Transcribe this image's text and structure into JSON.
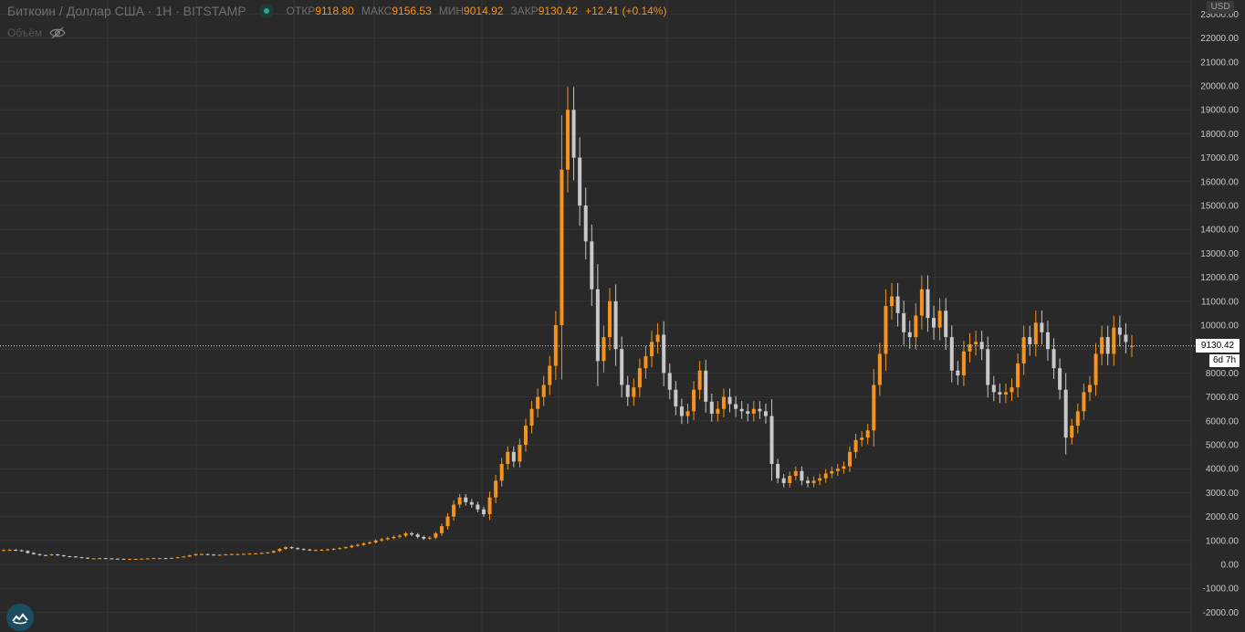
{
  "legend": {
    "title": "Биткоин / Доллар США · 1Н · BITSTAMP",
    "open_label": "ОТКР",
    "open_value": "9118.80",
    "high_label": "МАКС",
    "high_value": "9156.53",
    "low_label": "МИН",
    "low_value": "9014.92",
    "close_label": "ЗАКР",
    "close_value": "9130.42",
    "change": "+12.41 (+0.14%)",
    "volume_label": "Объём"
  },
  "currency_tag": "USD",
  "last_price_label": "9130.42",
  "countdown_label": "6d 7h",
  "colors": {
    "background": "#2a2929",
    "grid": "#353535",
    "up_candle": "#f7931a",
    "down_candle": "#c8c8c8",
    "axis_text": "#c8c8c8",
    "logo": "#1b4d63"
  },
  "icons": {
    "volume_toggle": "eye-crossed-icon",
    "logo": "cloud-logo-icon",
    "status": "status-dot-icon"
  },
  "chart_data": {
    "type": "candlestick",
    "title": "Биткоин / Доллар США · 1Н · BITSTAMP",
    "y_axis_ticks": [
      "-2000.00",
      "-1000.00",
      "0.00",
      "1000.00",
      "2000.00",
      "3000.00",
      "4000.00",
      "5000.00",
      "6000.00",
      "7000.00",
      "8000.00",
      "9000.00",
      "10000.00",
      "11000.00",
      "12000.00",
      "13000.00",
      "14000.00",
      "15000.00",
      "16000.00",
      "17000.00",
      "18000.00",
      "19000.00",
      "20000.00",
      "21000.00",
      "22000.00",
      "23000.00"
    ],
    "ylim": [
      -2700,
      24000
    ],
    "currency": "USD",
    "last_price": 9130.42,
    "series_close": [
      600,
      610,
      590,
      560,
      480,
      430,
      390,
      380,
      420,
      380,
      340,
      330,
      300,
      280,
      240,
      250,
      260,
      250,
      240,
      235,
      230,
      230,
      230,
      240,
      250,
      260,
      260,
      250,
      270,
      300,
      330,
      380,
      430,
      430,
      410,
      400,
      400,
      420,
      430,
      430,
      440,
      450,
      460,
      480,
      500,
      560,
      650,
      720,
      680,
      640,
      620,
      600,
      600,
      610,
      630,
      650,
      680,
      720,
      780,
      820,
      880,
      920,
      1000,
      1050,
      1100,
      1150,
      1200,
      1300,
      1250,
      1150,
      1080,
      1120,
      1300,
      1600,
      2000,
      2500,
      2800,
      2600,
      2500,
      2300,
      2100,
      2800,
      3500,
      4200,
      4700,
      4300,
      5000,
      5800,
      6500,
      7000,
      7500,
      8300,
      10000,
      16500,
      19000,
      17000,
      15000,
      13500,
      11500,
      8500,
      9500,
      11000,
      9000,
      7500,
      7000,
      7400,
      8200,
      8700,
      9300,
      9600,
      8000,
      7300,
      6600,
      6200,
      6400,
      7300,
      8100,
      6800,
      6300,
      6500,
      7000,
      6700,
      6500,
      6400,
      6300,
      6500,
      6400,
      6200,
      4200,
      3600,
      3400,
      3700,
      3900,
      3500,
      3400,
      3500,
      3600,
      3800,
      3900,
      4000,
      4100,
      4700,
      5200,
      5300,
      5600,
      7500,
      8800,
      10800,
      11200,
      10500,
      9700,
      9500,
      10400,
      11500,
      10300,
      9900,
      10600,
      9500,
      8100,
      7900,
      8900,
      9200,
      9300,
      9000,
      7500,
      7200,
      7100,
      7200,
      7400,
      8400,
      9500,
      9200,
      10100,
      9700,
      9000,
      8200,
      7300,
      5300,
      5800,
      6400,
      7200,
      7500,
      8800,
      9500,
      8800,
      9900,
      9600,
      9300,
      9130
    ],
    "series_open": [
      590,
      600,
      610,
      590,
      560,
      480,
      430,
      390,
      380,
      420,
      380,
      340,
      330,
      300,
      280,
      240,
      250,
      260,
      250,
      240,
      235,
      230,
      230,
      230,
      240,
      250,
      260,
      260,
      250,
      270,
      300,
      330,
      380,
      430,
      430,
      410,
      400,
      400,
      420,
      430,
      430,
      440,
      450,
      460,
      480,
      500,
      560,
      650,
      720,
      680,
      640,
      620,
      600,
      600,
      610,
      630,
      650,
      680,
      720,
      780,
      820,
      880,
      920,
      1000,
      1050,
      1100,
      1150,
      1200,
      1300,
      1250,
      1150,
      1080,
      1120,
      1300,
      1600,
      2000,
      2500,
      2800,
      2600,
      2500,
      2300,
      2100,
      2800,
      3500,
      4200,
      4700,
      4300,
      5000,
      5800,
      6500,
      7000,
      7500,
      8300,
      10000,
      16500,
      19000,
      17000,
      15000,
      13500,
      11500,
      8500,
      9500,
      11000,
      9000,
      7500,
      7000,
      7400,
      8200,
      8700,
      9300,
      9600,
      8000,
      7300,
      6600,
      6200,
      6400,
      7300,
      8100,
      6800,
      6300,
      6500,
      7000,
      6700,
      6500,
      6400,
      6300,
      6500,
      6400,
      6200,
      4200,
      3600,
      3400,
      3700,
      3900,
      3500,
      3400,
      3500,
      3600,
      3800,
      3900,
      4000,
      4100,
      4700,
      5200,
      5300,
      5600,
      7500,
      8800,
      10800,
      11200,
      10500,
      9700,
      9500,
      10400,
      11500,
      10300,
      9900,
      10600,
      9500,
      8100,
      7900,
      8900,
      9200,
      9300,
      9000,
      7500,
      7200,
      7100,
      7200,
      7400,
      8400,
      9500,
      9200,
      10100,
      9700,
      9000,
      8200,
      7300,
      5300,
      5800,
      6400,
      7200,
      7500,
      8800,
      9500,
      8800,
      9900,
      9600,
      9118.8
    ]
  }
}
